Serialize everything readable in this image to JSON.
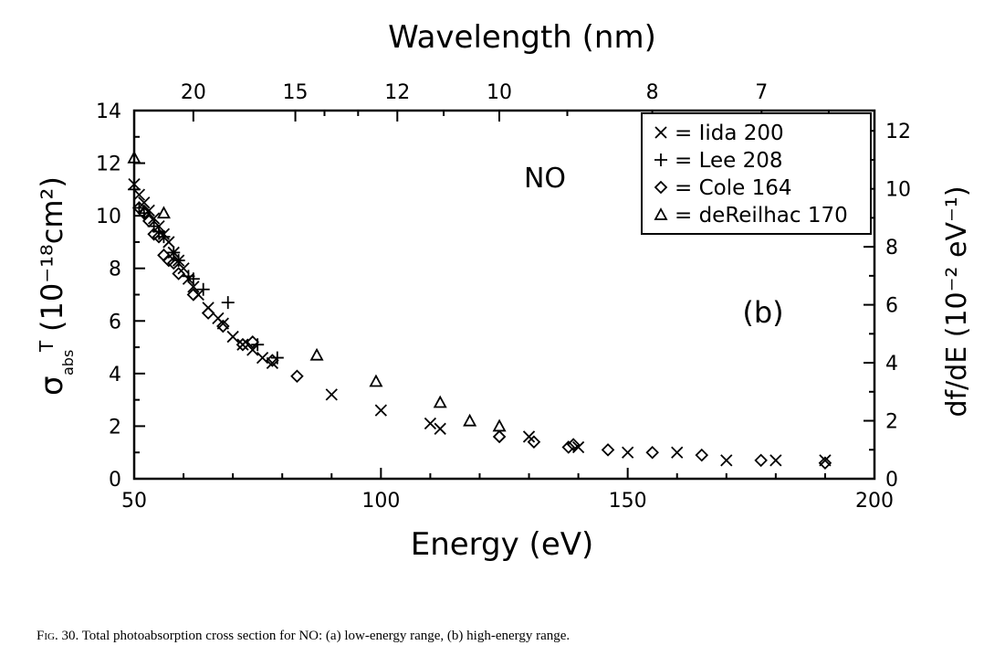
{
  "chart_data": {
    "type": "scatter",
    "xlabel": "Energy (eV)",
    "xlim": [
      50,
      200
    ],
    "x_ticks": [
      50,
      100,
      150,
      200
    ],
    "ylim": [
      0,
      14
    ],
    "y_ticks": [
      0,
      2,
      4,
      6,
      8,
      10,
      12,
      14
    ],
    "ylabel_main": "σ",
    "ylabel_sub": "abs",
    "ylabel_sup": "T",
    "ylabel_units": "(10⁻¹⁸cm²)",
    "y2label": "df/dE (10⁻² eV⁻¹)",
    "y2_ticks": [
      0,
      2,
      4,
      6,
      8,
      10,
      12
    ],
    "top_axis_label": "Wavelength (nm)",
    "top_ticks": [
      "20",
      "15",
      "12",
      "10",
      "8",
      "7"
    ],
    "annotations": [
      "NO",
      "(b)"
    ],
    "legend_position": "top-right",
    "series": [
      {
        "name": "= Iida 200",
        "marker": "x",
        "x": [
          50,
          51,
          52,
          53,
          54,
          55,
          56,
          57,
          58,
          59,
          60,
          61,
          62,
          63,
          65,
          67,
          68,
          70,
          72,
          74,
          76,
          78,
          90,
          100,
          110,
          112,
          130,
          140,
          150,
          160,
          170,
          180,
          190
        ],
        "y": [
          11.2,
          10.8,
          10.5,
          10.2,
          9.9,
          9.6,
          9.3,
          9.0,
          8.6,
          8.3,
          8.0,
          7.6,
          7.3,
          7.0,
          6.5,
          6.1,
          5.9,
          5.4,
          5.1,
          4.9,
          4.6,
          4.4,
          3.2,
          2.6,
          2.1,
          1.9,
          1.6,
          1.2,
          1.0,
          1.0,
          0.7,
          0.7,
          0.7
        ]
      },
      {
        "name": "= Lee 208",
        "marker": "+",
        "x": [
          50,
          51,
          52,
          54,
          55,
          56,
          58,
          59,
          61,
          62,
          64,
          69,
          75,
          79
        ],
        "y": [
          11.0,
          10.3,
          10.1,
          9.6,
          9.4,
          9.2,
          8.6,
          8.3,
          7.7,
          7.6,
          7.2,
          6.7,
          5.1,
          4.6
        ],
        "extra_x": [],
        "extra_y": []
      },
      {
        "name": "= Cole 164",
        "marker": "diamond",
        "x": [
          51,
          52,
          53,
          54,
          55,
          56,
          57,
          58,
          59,
          62,
          65,
          68,
          72,
          74,
          78,
          83,
          124,
          131,
          138,
          139,
          146,
          155,
          165,
          177,
          190
        ],
        "y": [
          10.3,
          10.1,
          9.8,
          9.3,
          9.2,
          8.5,
          8.3,
          8.2,
          7.8,
          7.0,
          6.3,
          5.8,
          5.1,
          5.2,
          4.5,
          3.9,
          1.6,
          1.4,
          1.2,
          1.3,
          1.1,
          1.0,
          0.9,
          0.7,
          0.6
        ]
      },
      {
        "name": "= deReilhac 170",
        "marker": "triangle",
        "x": [
          50,
          56,
          87,
          99,
          112,
          118,
          124
        ],
        "y": [
          12.2,
          10.1,
          4.7,
          3.7,
          2.9,
          2.2,
          2.0
        ]
      }
    ]
  },
  "caption": {
    "fig_label": "Fig. 30.",
    "text": "Total photoabsorption cross section for NO: (a) low-energy range, (b) high-energy range."
  }
}
